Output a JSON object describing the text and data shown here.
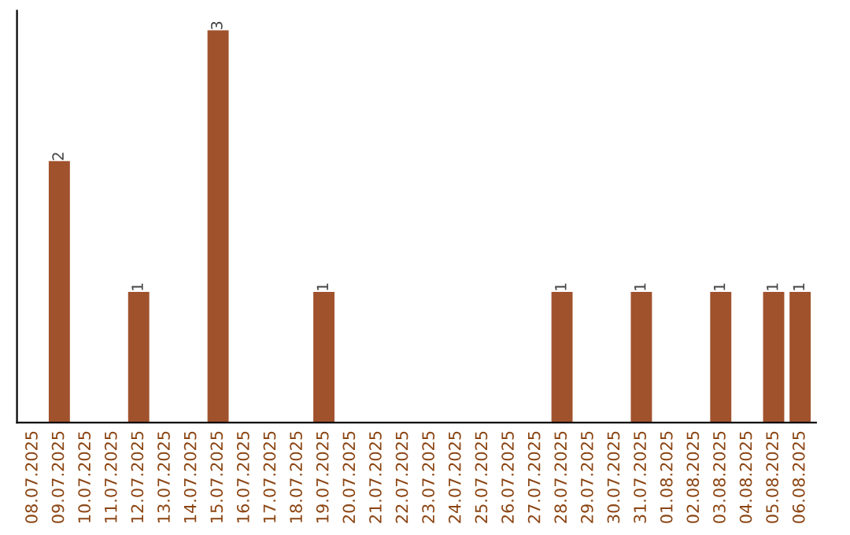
{
  "chart_data": {
    "type": "bar",
    "categories": [
      "08.07.2025",
      "09.07.2025",
      "10.07.2025",
      "11.07.2025",
      "12.07.2025",
      "13.07.2025",
      "14.07.2025",
      "15.07.2025",
      "16.07.2025",
      "17.07.2025",
      "18.07.2025",
      "19.07.2025",
      "20.07.2025",
      "21.07.2025",
      "22.07.2025",
      "23.07.2025",
      "24.07.2025",
      "25.07.2025",
      "26.07.2025",
      "27.07.2025",
      "28.07.2025",
      "29.07.2025",
      "30.07.2025",
      "31.07.2025",
      "01.08.2025",
      "02.08.2025",
      "03.08.2025",
      "04.08.2025",
      "05.08.2025",
      "06.08.2025"
    ],
    "values": [
      0,
      2,
      0,
      0,
      1,
      0,
      0,
      3,
      0,
      0,
      0,
      1,
      0,
      0,
      0,
      0,
      0,
      0,
      0,
      0,
      1,
      0,
      0,
      1,
      0,
      0,
      1,
      0,
      1,
      1
    ],
    "value_labels": [
      null,
      "2",
      null,
      null,
      "1",
      null,
      null,
      "3",
      null,
      null,
      null,
      "1",
      null,
      null,
      null,
      null,
      null,
      null,
      null,
      null,
      "1",
      null,
      null,
      "1",
      null,
      null,
      "1",
      null,
      "1",
      "1"
    ],
    "color": "#a0522d",
    "ylim": [
      0,
      3.15
    ],
    "tick_labels": "x",
    "grid": false,
    "legend": false
  }
}
